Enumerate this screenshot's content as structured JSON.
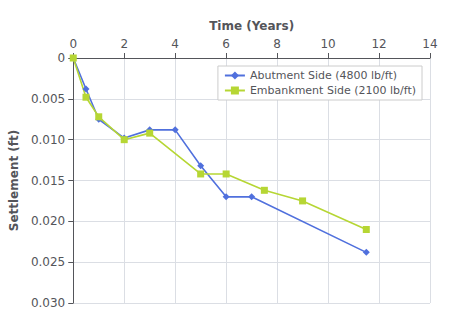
{
  "chart_data": {
    "type": "line",
    "xlabel": "Time (Years)",
    "ylabel": "Settlement (ft)",
    "xlim": [
      0,
      14
    ],
    "ylim": [
      0.03,
      0
    ],
    "xticks": [
      0,
      2,
      4,
      6,
      8,
      10,
      12,
      14
    ],
    "yticks": [
      0,
      0.005,
      {
        "value": 0.01,
        "label": "0.010"
      },
      0.015,
      {
        "value": 0.02,
        "label": "0.020"
      },
      0.025,
      {
        "value": 0.03,
        "label": "0.030"
      }
    ],
    "grid": true,
    "legend": "upper right",
    "series": [
      {
        "name": "Abutment Side (4800 lb/ft)",
        "marker": "diamond",
        "x": [
          0,
          0.5,
          1.0,
          2.0,
          3.0,
          4.0,
          5.0,
          6.0,
          7.0,
          11.5
        ],
        "values": [
          0,
          0.0038,
          0.0075,
          0.0098,
          0.0088,
          0.0088,
          0.0132,
          0.017,
          0.017,
          0.0238
        ]
      },
      {
        "name": "Embankment Side (2100 lb/ft)",
        "marker": "square",
        "x": [
          0,
          0.5,
          1.0,
          2.0,
          3.0,
          5.0,
          6.0,
          7.5,
          9.0,
          11.5
        ],
        "values": [
          0,
          0.0048,
          0.0072,
          0.01,
          0.0092,
          0.0142,
          0.0142,
          0.0162,
          0.0175,
          0.021
        ]
      }
    ]
  }
}
